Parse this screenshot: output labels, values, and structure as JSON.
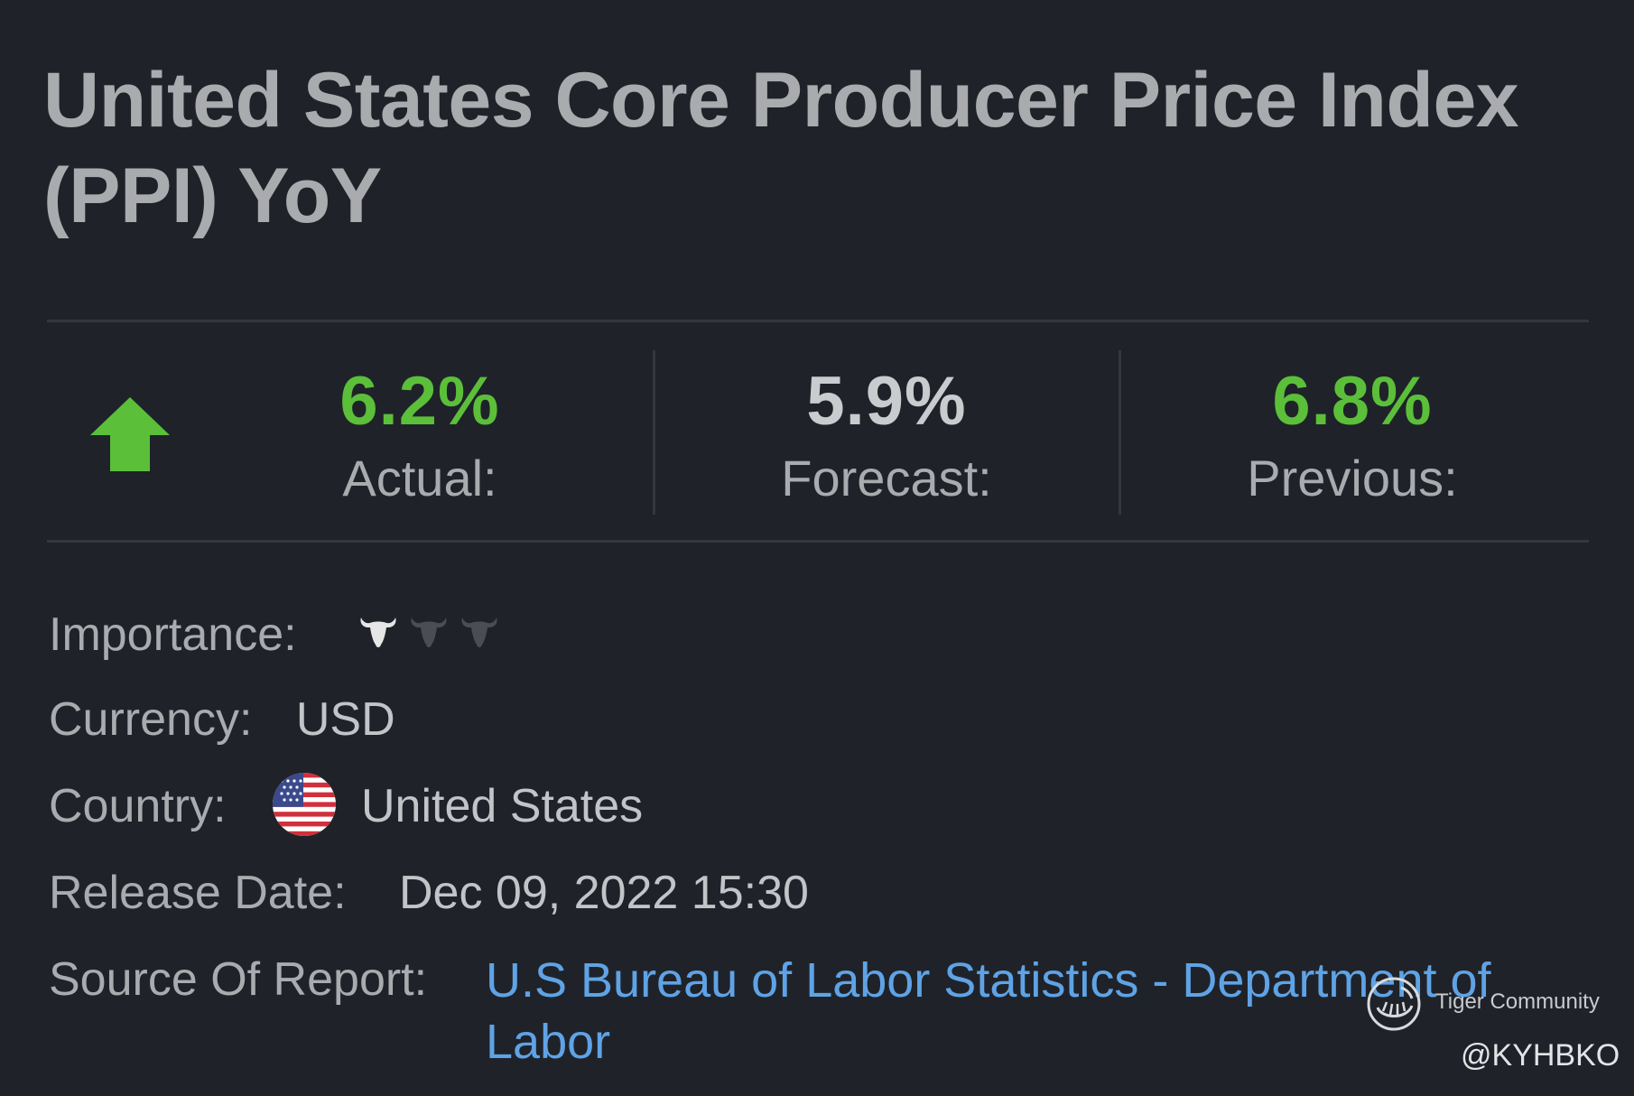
{
  "title": "United States Core Producer Price Index (PPI) YoY",
  "stats": {
    "actual": {
      "value": "6.2%",
      "label": "Actual:"
    },
    "forecast": {
      "value": "5.9%",
      "label": "Forecast:"
    },
    "previous": {
      "value": "6.8%",
      "label": "Previous:"
    }
  },
  "trend_icon": "arrow-up-icon",
  "details": {
    "importance_label": "Importance:",
    "importance_level": 1,
    "importance_max": 3,
    "currency_label": "Currency:",
    "currency_value": "USD",
    "country_label": "Country:",
    "country_value": "United States",
    "release_label": "Release Date:",
    "release_value": "Dec 09, 2022 15:30",
    "source_label": "Source Of Report:",
    "source_value": "U.S Bureau of Labor Statistics - Department of Labor"
  },
  "watermark": {
    "brand": "Tiger Community",
    "handle": "@KYHBKO"
  },
  "colors": {
    "background": "#1f2329",
    "positive": "#5bbf3a",
    "link": "#5fa3e6",
    "importance_on": "#e6e6e6",
    "importance_off": "#4a4d52"
  }
}
